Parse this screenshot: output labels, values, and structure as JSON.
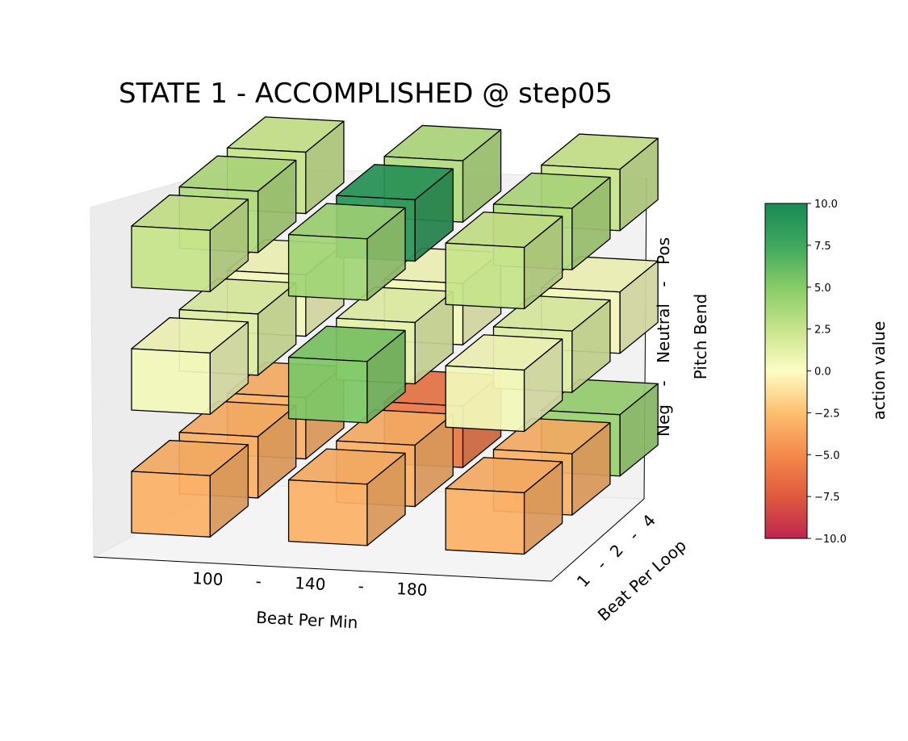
{
  "chart_data": {
    "type": "heatmap",
    "title": "STATE 1 - ACCOMPLISHED @ step05",
    "xlabel": "Beat Per Min",
    "ylabel": "Beat Per Loop",
    "zlabel": "Pitch Bend",
    "x_ticks": [
      "100",
      "-",
      "140",
      "-",
      "180"
    ],
    "y_ticks": [
      "1",
      "-",
      "2",
      "-",
      "4"
    ],
    "z_ticks": [
      "Neg",
      "-",
      "Neutral",
      "-",
      "Pos"
    ],
    "x_categories": [
      "100",
      "140",
      "180"
    ],
    "y_categories": [
      "1",
      "2",
      "4"
    ],
    "z_categories": [
      "Neg",
      "Neutral",
      "Pos"
    ],
    "colorbar": {
      "label": "action value",
      "colormap": "RdYlGn",
      "range": [
        -10,
        10
      ],
      "ticks": [
        10.0,
        7.5,
        5.0,
        2.5,
        0.0,
        -2.5,
        -5.0,
        -7.5,
        -10.0
      ],
      "tick_labels": [
        "10.0",
        "7.5",
        "5.0",
        "2.5",
        "0.0",
        "−2.5",
        "−5.0",
        "−7.5",
        "−10.0"
      ]
    },
    "cells": [
      {
        "bpm": "100",
        "loop": "1",
        "pitch": "Neg",
        "value": -3.2
      },
      {
        "bpm": "100",
        "loop": "2",
        "pitch": "Neg",
        "value": -3.2
      },
      {
        "bpm": "100",
        "loop": "4",
        "pitch": "Neg",
        "value": -3.2
      },
      {
        "bpm": "140",
        "loop": "1",
        "pitch": "Neg",
        "value": -3.2
      },
      {
        "bpm": "140",
        "loop": "2",
        "pitch": "Neg",
        "value": -3.2
      },
      {
        "bpm": "140",
        "loop": "4",
        "pitch": "Neg",
        "value": -6.0
      },
      {
        "bpm": "180",
        "loop": "1",
        "pitch": "Neg",
        "value": -3.2
      },
      {
        "bpm": "180",
        "loop": "2",
        "pitch": "Neg",
        "value": -3.2
      },
      {
        "bpm": "180",
        "loop": "4",
        "pitch": "Neg",
        "value": 4.3
      },
      {
        "bpm": "100",
        "loop": "1",
        "pitch": "Neutral",
        "value": 0.5
      },
      {
        "bpm": "100",
        "loop": "2",
        "pitch": "Neutral",
        "value": 1.5
      },
      {
        "bpm": "100",
        "loop": "4",
        "pitch": "Neutral",
        "value": 0.5
      },
      {
        "bpm": "140",
        "loop": "1",
        "pitch": "Neutral",
        "value": 5.3
      },
      {
        "bpm": "140",
        "loop": "2",
        "pitch": "Neutral",
        "value": 1.2
      },
      {
        "bpm": "140",
        "loop": "4",
        "pitch": "Neutral",
        "value": 0.5
      },
      {
        "bpm": "180",
        "loop": "1",
        "pitch": "Neutral",
        "value": 0.5
      },
      {
        "bpm": "180",
        "loop": "2",
        "pitch": "Neutral",
        "value": 1.5
      },
      {
        "bpm": "180",
        "loop": "4",
        "pitch": "Neutral",
        "value": 0.5
      },
      {
        "bpm": "100",
        "loop": "1",
        "pitch": "Pos",
        "value": 2.5
      },
      {
        "bpm": "100",
        "loop": "2",
        "pitch": "Pos",
        "value": 3.4
      },
      {
        "bpm": "100",
        "loop": "4",
        "pitch": "Pos",
        "value": 2.5
      },
      {
        "bpm": "140",
        "loop": "1",
        "pitch": "Pos",
        "value": 4.0
      },
      {
        "bpm": "140",
        "loop": "2",
        "pitch": "Pos",
        "value": 9.0
      },
      {
        "bpm": "140",
        "loop": "4",
        "pitch": "Pos",
        "value": 3.4
      },
      {
        "bpm": "180",
        "loop": "1",
        "pitch": "Pos",
        "value": 2.5
      },
      {
        "bpm": "180",
        "loop": "2",
        "pitch": "Pos",
        "value": 3.4
      },
      {
        "bpm": "180",
        "loop": "4",
        "pitch": "Pos",
        "value": 2.5
      }
    ]
  }
}
